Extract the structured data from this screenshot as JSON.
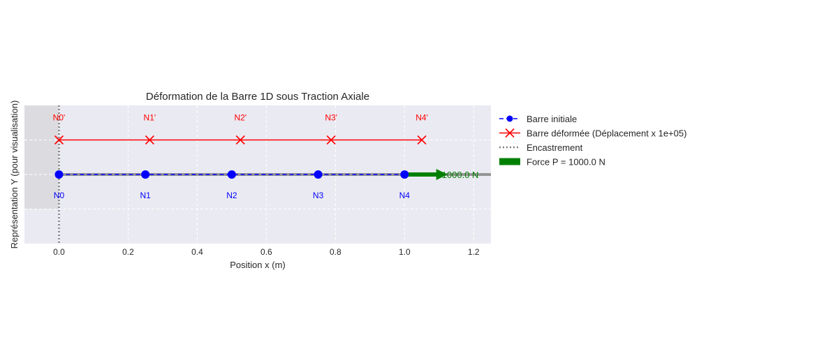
{
  "chart_data": {
    "type": "line",
    "title": "Déformation de la Barre 1D sous Traction Axiale",
    "xlabel": "Position x (m)",
    "ylabel": "Représentation Y (pour visualisation)",
    "xlim": [
      -0.1,
      1.25
    ],
    "ylim": [
      -1.0,
      1.0
    ],
    "xticks": [
      0.0,
      0.2,
      0.4,
      0.6,
      0.8,
      1.0,
      1.2
    ],
    "xtick_labels": [
      "0.0",
      "0.2",
      "0.4",
      "0.6",
      "0.8",
      "1.0",
      "1.2"
    ],
    "grid": true,
    "legend_position": "outside-right",
    "series": [
      {
        "name": "Barre initiale",
        "color": "#0000ff",
        "style": "dashed",
        "marker": "circle",
        "x": [
          0.0,
          0.25,
          0.5,
          0.75,
          1.0
        ],
        "y": [
          0,
          0,
          0,
          0,
          0
        ],
        "point_labels": [
          "N0",
          "N1",
          "N2",
          "N3",
          "N4"
        ]
      },
      {
        "name": "Barre déformée (Déplacement x 1e+05)",
        "color": "#ff0000",
        "style": "solid",
        "marker": "x",
        "x": [
          0.0,
          0.2625,
          0.525,
          0.7875,
          1.05
        ],
        "y": [
          0.5,
          0.5,
          0.5,
          0.5,
          0.5
        ],
        "point_labels": [
          "N0'",
          "N1'",
          "N2'",
          "N3'",
          "N4'"
        ]
      }
    ],
    "support": {
      "name": "Encastrement",
      "x": 0.0,
      "color": "#808080",
      "style": "dotted"
    },
    "force": {
      "name": "Force P = 1000.0 N",
      "label": "1000.0 N",
      "x_start": 1.0,
      "x_end": 1.12,
      "y": 0,
      "color": "#008000"
    },
    "colors": {
      "plot_background": "#eaeaf2",
      "support_region": "#dcdce0",
      "grid": "#ffffff"
    }
  }
}
